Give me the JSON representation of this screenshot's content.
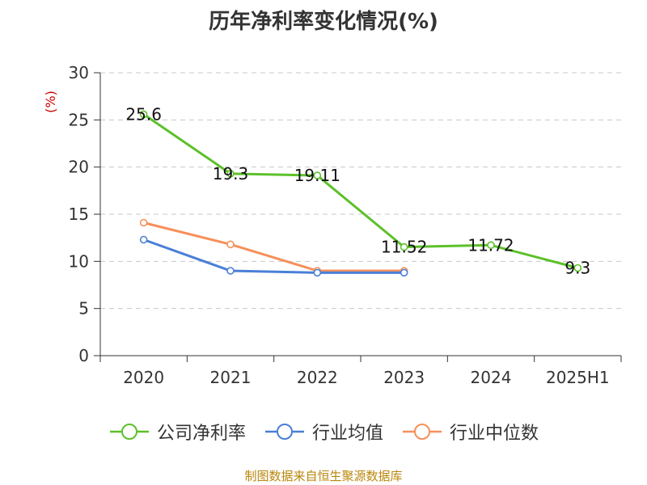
{
  "chart_data": {
    "type": "line",
    "title": "历年净利率变化情况(%)",
    "ylabel": "(%)",
    "ylabel_color": "#cc0000",
    "categories": [
      "2020",
      "2021",
      "2022",
      "2023",
      "2024",
      "2025H1"
    ],
    "ylim": [
      0,
      30
    ],
    "yticks": [
      0,
      5,
      10,
      15,
      20,
      25,
      30
    ],
    "grid": true,
    "legend_position": "bottom",
    "series": [
      {
        "name": "公司净利率",
        "color": "#5cc12a",
        "values": [
          25.6,
          19.3,
          19.11,
          11.52,
          11.72,
          9.3
        ],
        "data_labels": [
          "25.6",
          "19.3",
          "19.11",
          "11.52",
          "11.72",
          "9.3"
        ]
      },
      {
        "name": "行业均值",
        "color": "#4a7fd8",
        "values": [
          12.3,
          9.0,
          8.8,
          8.8,
          null,
          null
        ]
      },
      {
        "name": "行业中位数",
        "color": "#f6905a",
        "values": [
          14.1,
          11.8,
          9.0,
          9.0,
          null,
          null
        ]
      }
    ]
  },
  "source_note": "制图数据来自恒生聚源数据库"
}
